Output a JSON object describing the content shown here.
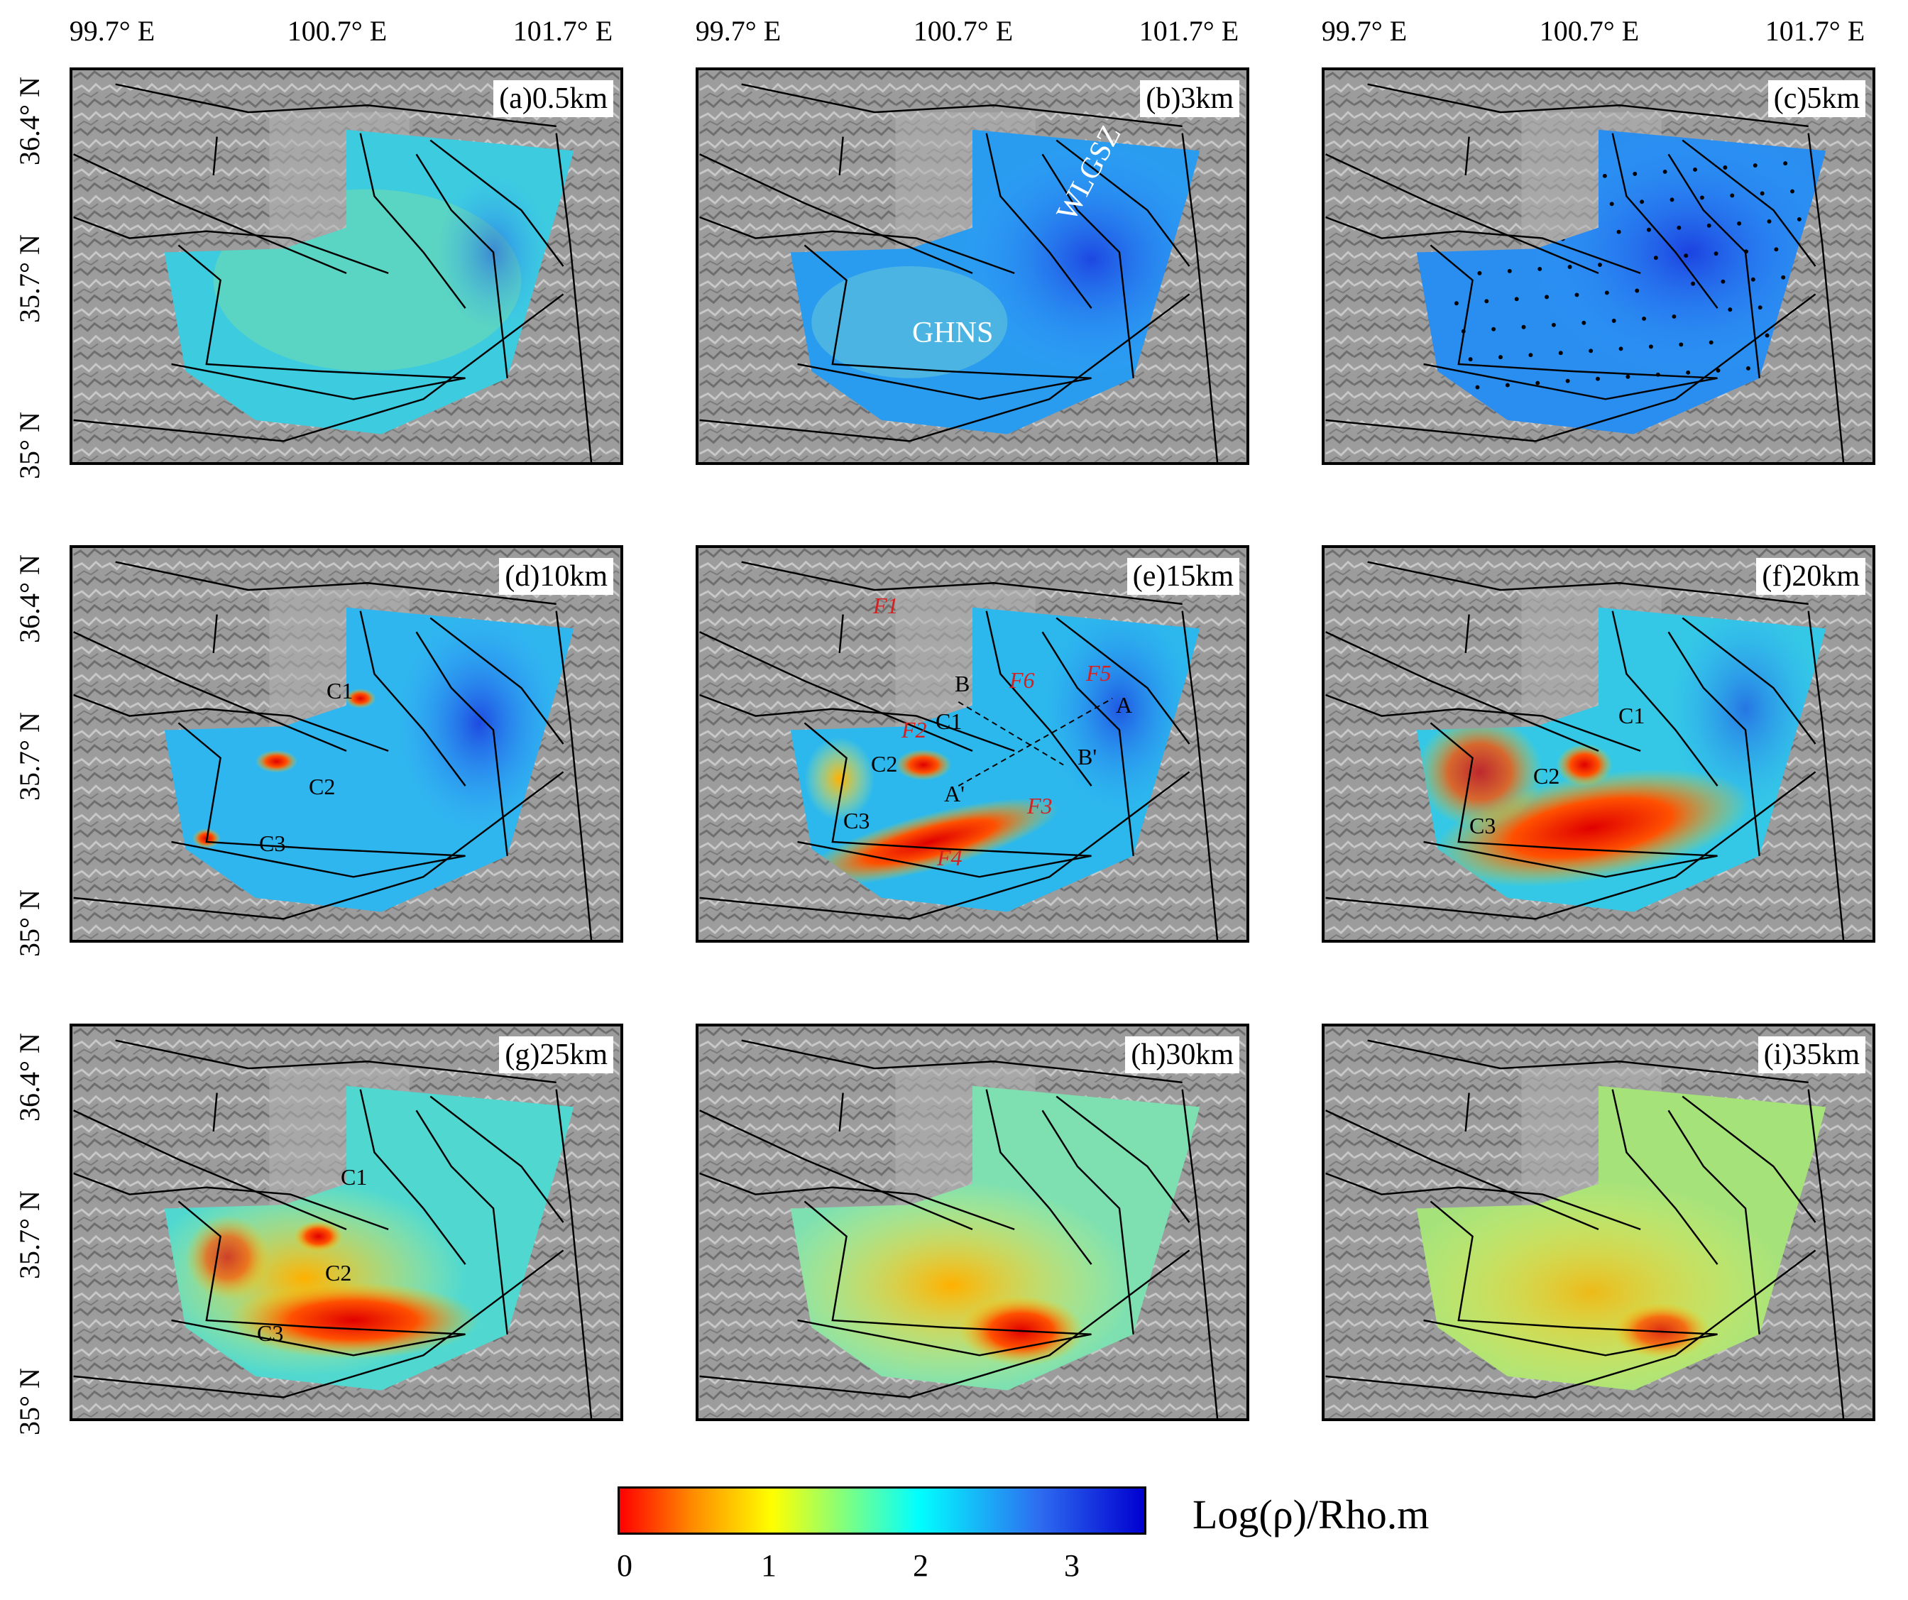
{
  "lon_ticks": [
    "99.7° E",
    "100.7° E",
    "101.7° E"
  ],
  "lat_ticks": [
    "36.4° N",
    "35.7° N",
    "35° N"
  ],
  "panels": [
    {
      "label": "(a)0.5km",
      "style": "blue-cyan"
    },
    {
      "label": "(b)3km",
      "style": "blue"
    },
    {
      "label": "(c)5km",
      "style": "blue-dots"
    },
    {
      "label": "(d)10km",
      "style": "blue-c"
    },
    {
      "label": "(e)15km",
      "style": "red-ann"
    },
    {
      "label": "(f)20km",
      "style": "red"
    },
    {
      "label": "(g)25km",
      "style": "red-yellow"
    },
    {
      "label": "(h)30km",
      "style": "yellow"
    },
    {
      "label": "(i)35km",
      "style": "yellow-soft"
    }
  ],
  "annotations": {
    "b": [
      "WLGSZ",
      "GHNS"
    ],
    "d": [
      "C1",
      "C2",
      "C3"
    ],
    "e": [
      "F1",
      "F6",
      "F5",
      "B",
      "A",
      "C1",
      "F2",
      "B'",
      "C2",
      "A'",
      "F3",
      "C3",
      "F4"
    ],
    "f": [
      "C1",
      "C2",
      "C3"
    ],
    "g": [
      "C1",
      "C2",
      "C3"
    ]
  },
  "colorbar": {
    "title": "Log(ρ)/Rho.m",
    "ticks": [
      "0",
      "1",
      "2",
      "3"
    ],
    "range": [
      0,
      3.5
    ],
    "colors": [
      "#ff0000",
      "#ff8c00",
      "#ffff00",
      "#00ffff",
      "#2060ff",
      "#0000c8"
    ]
  }
}
